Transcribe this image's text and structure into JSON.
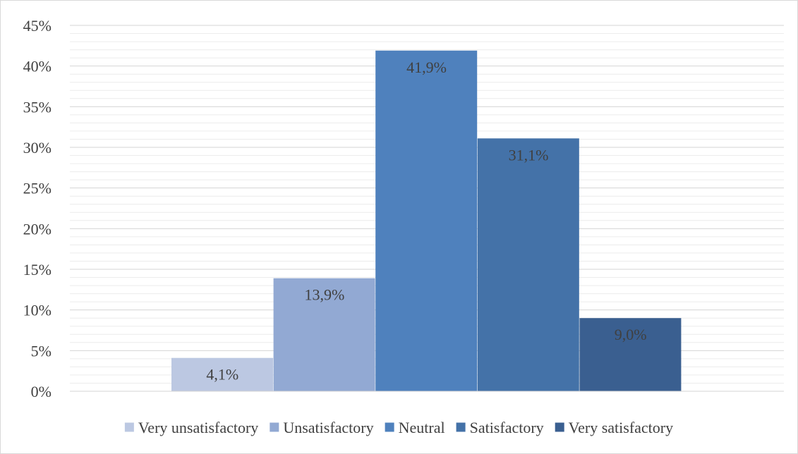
{
  "chart_data": {
    "type": "bar",
    "title": "",
    "xlabel": "",
    "ylabel": "",
    "ylim": [
      0,
      45
    ],
    "yticks": [
      0,
      5,
      10,
      15,
      20,
      25,
      30,
      35,
      40,
      45
    ],
    "ytick_labels": [
      "0%",
      "5%",
      "10%",
      "15%",
      "20%",
      "25%",
      "30%",
      "35%",
      "40%",
      "45%"
    ],
    "minor_grid_step": 1,
    "grid": true,
    "legend_position": "bottom",
    "series": [
      {
        "name": "Very unsatisfactory",
        "value": 4.1,
        "label": "4,1%",
        "color": "#bcc8e2"
      },
      {
        "name": "Unsatisfactory",
        "value": 13.9,
        "label": "13,9%",
        "color": "#92a9d3"
      },
      {
        "name": "Neutral",
        "value": 41.9,
        "label": "41,9%",
        "color": "#4f81bd"
      },
      {
        "name": "Satisfactory",
        "value": 31.1,
        "label": "31,1%",
        "color": "#4472a8"
      },
      {
        "name": "Very satisfactory",
        "value": 9.0,
        "label": "9,0%",
        "color": "#3a5f90"
      }
    ],
    "colors": {
      "major_grid": "#d4d4d4",
      "minor_grid": "#ececec",
      "axis_line": "#d4d4d4",
      "text": "#404040"
    }
  }
}
